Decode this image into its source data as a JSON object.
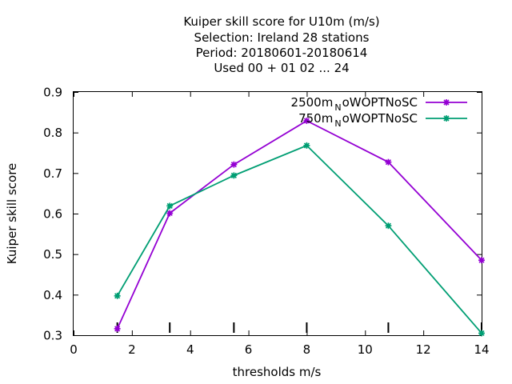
{
  "chart_data": {
    "type": "line",
    "title_lines": [
      "Kuiper skill score  for U10m (m/s)",
      "Selection: Ireland      28 stations",
      "Period: 20180601-20180614",
      "Used  00 + 01 02 ... 24"
    ],
    "xlabel": "thresholds m/s",
    "ylabel": "Kuiper skill score",
    "xlim": [
      0,
      14
    ],
    "ylim": [
      0.3,
      0.9
    ],
    "x_ticks": [
      0,
      2,
      4,
      6,
      8,
      10,
      12,
      14
    ],
    "y_ticks": [
      0.3,
      0.4,
      0.5,
      0.6,
      0.7,
      0.8,
      0.9
    ],
    "x_tick_labels": [
      "0",
      "2",
      "4",
      "6",
      "8",
      "10",
      "12",
      "14"
    ],
    "y_tick_labels": [
      "0.3",
      "0.4",
      "0.5",
      "0.6",
      "0.7",
      "0.8",
      "0.9"
    ],
    "threshold_markers": [
      1.5,
      3.3,
      5.5,
      8.0,
      10.8,
      14.0
    ],
    "grid": false,
    "legend_position": "top-right",
    "series": [
      {
        "name": "2500m_NoWOPTNoSC",
        "legend_main": "2500m",
        "legend_sub": "N",
        "legend_rest": "oWOPTNoSC",
        "color": "#9400d3",
        "x": [
          1.5,
          3.3,
          5.5,
          8.0,
          10.8,
          14.0
        ],
        "y": [
          0.316,
          0.601,
          0.721,
          0.829,
          0.727,
          0.485
        ]
      },
      {
        "name": "750m_NoWOPTNoSC",
        "legend_main": "750m",
        "legend_sub": "N",
        "legend_rest": "oWOPTNoSC",
        "color": "#009e73",
        "x": [
          1.5,
          3.3,
          5.5,
          8.0,
          10.8,
          14.0
        ],
        "y": [
          0.397,
          0.619,
          0.694,
          0.768,
          0.57,
          0.305
        ]
      }
    ]
  }
}
